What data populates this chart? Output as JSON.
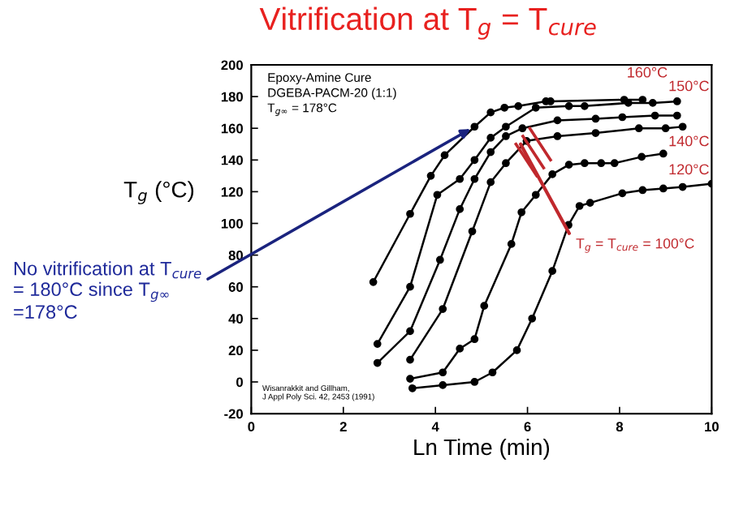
{
  "chart_data": {
    "type": "line",
    "title": "Vitrification at T$_{g}$ = T$_{cure}$",
    "xlabel": "Ln Time (min)",
    "ylabel": "T$_{g}$ (°C)",
    "xlim": [
      0,
      10
    ],
    "ylim": [
      -20,
      200
    ],
    "xticks": [
      0,
      2,
      4,
      6,
      8,
      10
    ],
    "yticks": [
      -20,
      0,
      20,
      40,
      60,
      80,
      100,
      120,
      140,
      160,
      180,
      200
    ],
    "grid": false,
    "legend": false,
    "marker": "circle",
    "line_style": "solid",
    "series": [
      {
        "color": "#000000",
        "x": [
          2.65,
          3.45,
          3.9,
          4.2,
          4.85,
          5.2,
          5.5,
          5.8,
          6.4,
          6.5,
          8.1,
          8.5
        ],
        "values": [
          63,
          106,
          130,
          143,
          161,
          170,
          173,
          174,
          177,
          177,
          178,
          178
        ]
      },
      {
        "color": "#000000",
        "x": [
          2.74,
          3.45,
          4.04,
          4.53,
          4.85,
          5.2,
          5.53,
          6.18,
          6.9,
          7.24,
          8.19,
          8.72,
          9.25
        ],
        "values": [
          24,
          60,
          118,
          128,
          140,
          154,
          161,
          173,
          174,
          174,
          176,
          176,
          177
        ]
      },
      {
        "color": "#000000",
        "x": [
          2.74,
          3.45,
          4.1,
          4.53,
          4.85,
          5.2,
          5.53,
          5.89,
          6.65,
          7.48,
          8.06,
          8.77,
          9.25
        ],
        "values": [
          12,
          32,
          77,
          109,
          128,
          145,
          155,
          160,
          165,
          166,
          167,
          168,
          168
        ]
      },
      {
        "color": "#000000",
        "x": [
          3.45,
          4.16,
          4.8,
          5.2,
          5.53,
          5.98,
          6.65,
          7.48,
          8.42,
          9.0,
          9.37
        ],
        "values": [
          14,
          46,
          95,
          126,
          138,
          152,
          155,
          157,
          160,
          160,
          161
        ]
      },
      {
        "color": "#000000",
        "x": [
          3.45,
          4.16,
          4.53,
          4.85,
          5.06,
          5.65,
          5.87,
          6.18,
          6.54,
          6.9,
          7.24,
          7.6,
          7.89,
          8.48,
          8.95
        ],
        "values": [
          2,
          6,
          21,
          27,
          48,
          87,
          107,
          118,
          131,
          137,
          138,
          138,
          138,
          142,
          144
        ]
      },
      {
        "color": "#000000",
        "x": [
          3.5,
          4.16,
          4.85,
          5.24,
          5.77,
          6.1,
          6.54,
          6.89,
          7.13,
          7.36,
          8.06,
          8.5,
          8.95,
          9.37,
          10.0
        ],
        "values": [
          -4,
          -2,
          0,
          6,
          20,
          40,
          70,
          99,
          111,
          113,
          119,
          121,
          122,
          123,
          125
        ]
      }
    ],
    "annotations": [
      "160°C",
      "150°C",
      "140°C",
      "120°C",
      {
        "text": "T$_{g}$ = T$_{cure}$ = 100°C",
        "x": 5.85,
        "y": 150
      },
      "Epoxy-Amine Cure\nDGEBA-PACM-20 (1:1)\nT$_{g∞}$ = 178°C",
      "Wisanrakkit and Gillham,\nJ Appl Poly Sci. 42, 2453 (1991)",
      "No vitrification at T$_{cure}$\n= 180°C since T$_{g∞}$\n=178°C"
    ]
  }
}
